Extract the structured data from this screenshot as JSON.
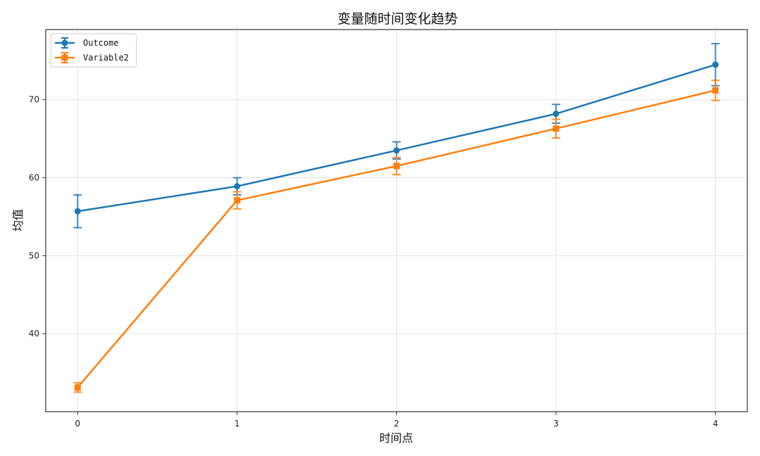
{
  "chart_data": {
    "type": "line",
    "title": "变量随时间变化趋势",
    "xlabel": "时间点",
    "ylabel": "均值",
    "x": [
      0,
      1,
      2,
      3,
      4
    ],
    "xticks": [
      "0",
      "1",
      "2",
      "3",
      "4"
    ],
    "xlim": [
      -0.2,
      4.2
    ],
    "yticks": [
      40,
      50,
      60,
      70
    ],
    "ylim": [
      30,
      79
    ],
    "grid": true,
    "legend_position": "top-left",
    "series": [
      {
        "name": "Outcome",
        "color": "#1f77b4",
        "marker": "circle",
        "values": [
          55.7,
          58.9,
          63.5,
          68.2,
          74.5
        ],
        "errors": [
          2.1,
          1.1,
          1.1,
          1.2,
          2.7
        ]
      },
      {
        "name": "Variable2",
        "color": "#ff7f0e",
        "marker": "square",
        "values": [
          33.1,
          57.1,
          61.5,
          66.3,
          71.2
        ],
        "errors": [
          0.6,
          1.1,
          1.1,
          1.2,
          1.3
        ]
      }
    ]
  }
}
